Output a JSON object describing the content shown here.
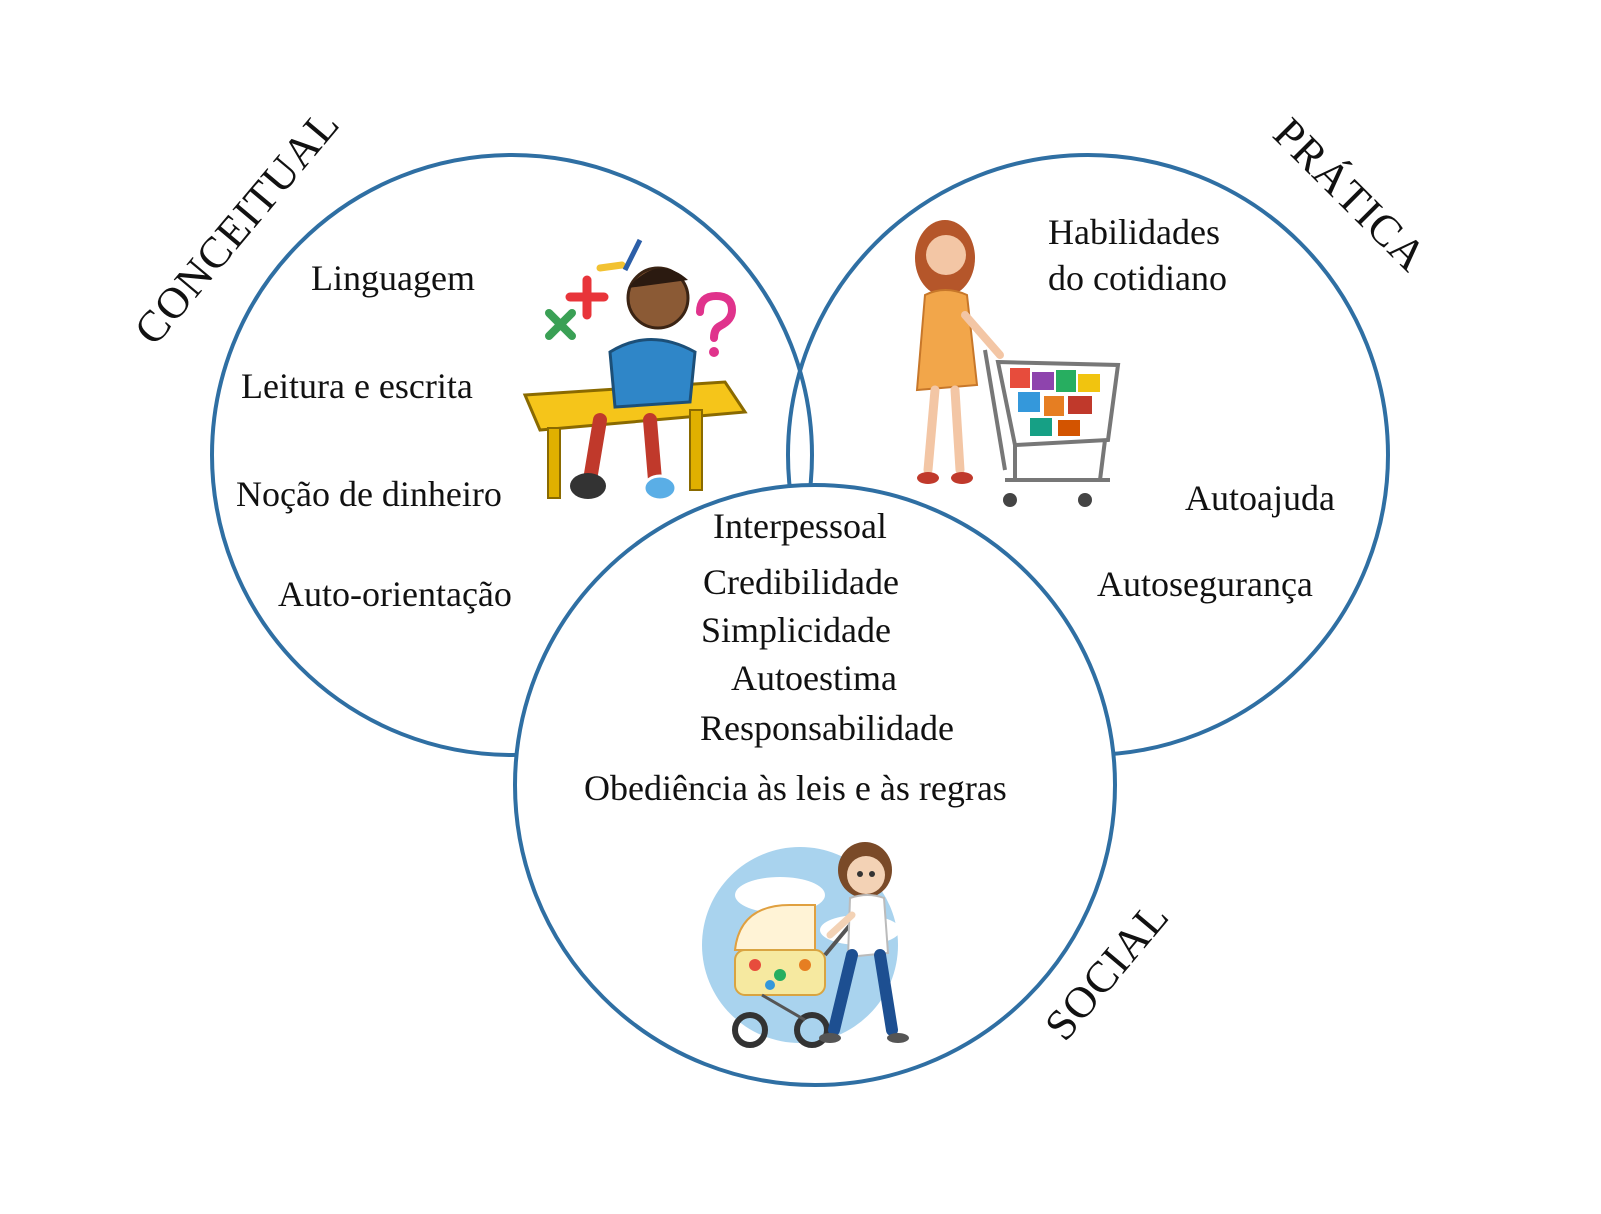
{
  "colors": {
    "circle_stroke": "#2f6fa3",
    "text": "#111111"
  },
  "domains": {
    "conceitual": {
      "label": "CONCEITUAL",
      "items": [
        "Linguagem",
        "Leitura e escrita",
        "Noção de dinheiro",
        "Auto-orientação"
      ],
      "illustration": "student-at-desk-math-symbols"
    },
    "pratica": {
      "label": "PRÁTICA",
      "items": [
        "Habilidades",
        "do cotidiano",
        "Autoajuda",
        "Autosegurança"
      ],
      "illustration": "woman-pushing-shopping-cart"
    },
    "social": {
      "label": "SOCIAL",
      "items": [
        "Interpessoal",
        "Credibilidade",
        "Simplicidade",
        "Autoestima",
        "Responsabilidade",
        "Obediência às leis e às regras"
      ],
      "illustration": "woman-pushing-baby-stroller"
    }
  }
}
